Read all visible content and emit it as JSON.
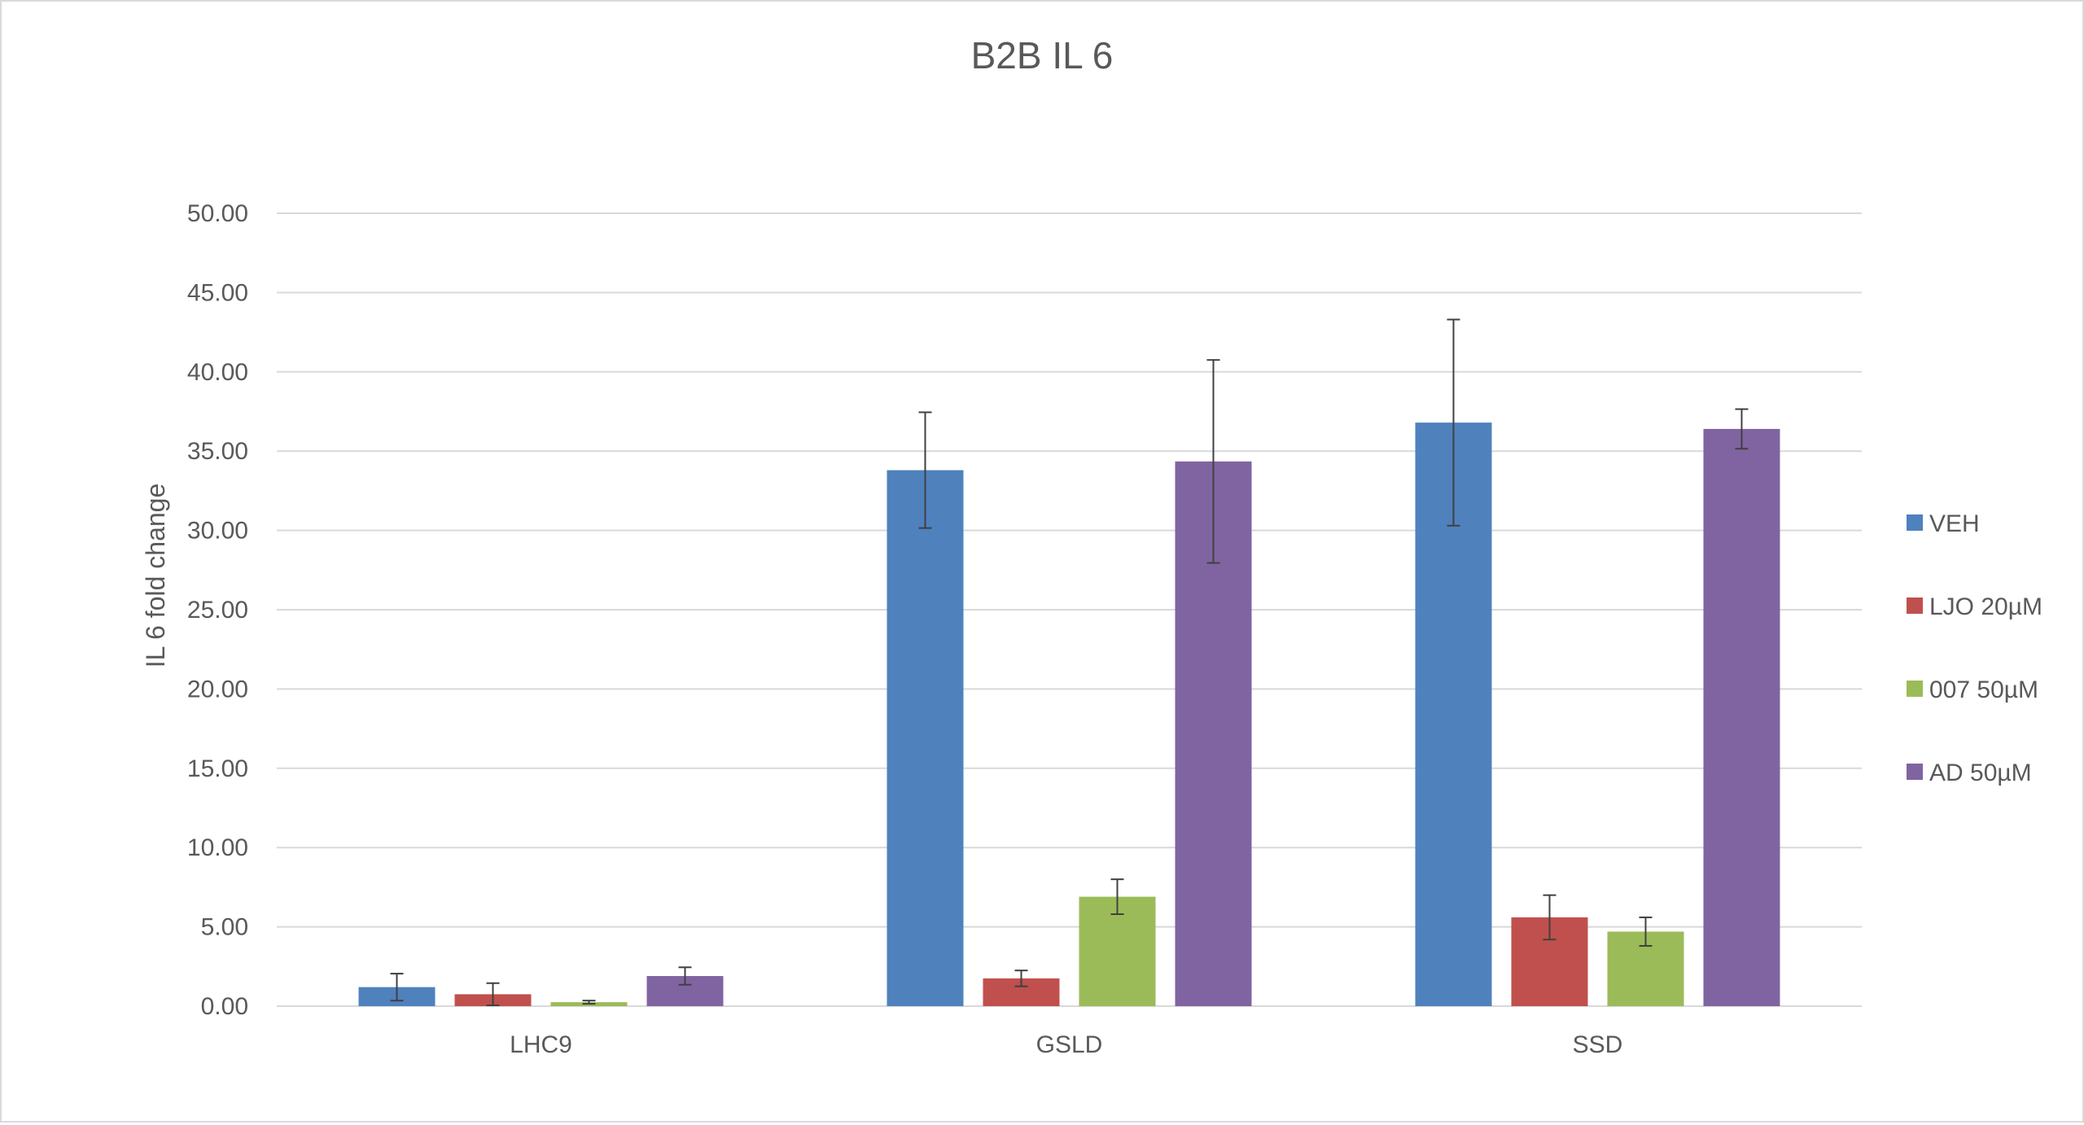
{
  "chart_data": {
    "type": "bar",
    "title": "B2B IL 6",
    "xlabel": "",
    "ylabel": "IL 6 fold change",
    "ylim": [
      0,
      50
    ],
    "ytick_step": 5,
    "ytick_labels": [
      "0.00",
      "5.00",
      "10.00",
      "15.00",
      "20.00",
      "25.00",
      "30.00",
      "35.00",
      "40.00",
      "45.00",
      "50.00"
    ],
    "grid": true,
    "legend_position": "right",
    "categories": [
      "LHC9",
      "GSLD",
      "SSD"
    ],
    "series": [
      {
        "name": "VEH",
        "color": "#4F81BD",
        "values": [
          1.2,
          33.8,
          36.8
        ],
        "errors": [
          0.85,
          3.65,
          6.5
        ]
      },
      {
        "name": "LJO 20µM",
        "color": "#C0504D",
        "values": [
          0.75,
          1.75,
          5.6
        ],
        "errors": [
          0.7,
          0.5,
          1.4
        ]
      },
      {
        "name": "007 50µM",
        "color": "#9BBB59",
        "values": [
          0.25,
          6.9,
          4.7
        ],
        "errors": [
          0.1,
          1.1,
          0.9
        ]
      },
      {
        "name": "AD 50µM",
        "color": "#8064A2",
        "values": [
          1.9,
          34.35,
          36.4
        ],
        "errors": [
          0.55,
          6.4,
          1.25
        ]
      }
    ]
  }
}
